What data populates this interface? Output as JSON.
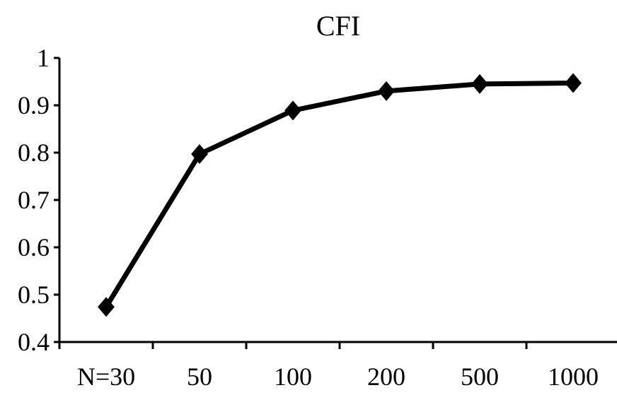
{
  "chart_data": {
    "type": "line",
    "title": "CFI",
    "categories": [
      "N=30",
      "50",
      "100",
      "200",
      "500",
      "1000"
    ],
    "series": [
      {
        "values": [
          0.474,
          0.797,
          0.889,
          0.93,
          0.945,
          0.947
        ]
      }
    ],
    "y_ticks": [
      "0.4",
      "0.5",
      "0.6",
      "0.7",
      "0.8",
      "0.9",
      "1"
    ],
    "ylim": [
      0.4,
      1.0
    ],
    "grid": false,
    "legend": "none",
    "marker": "diamond",
    "line_color": "#000000"
  }
}
